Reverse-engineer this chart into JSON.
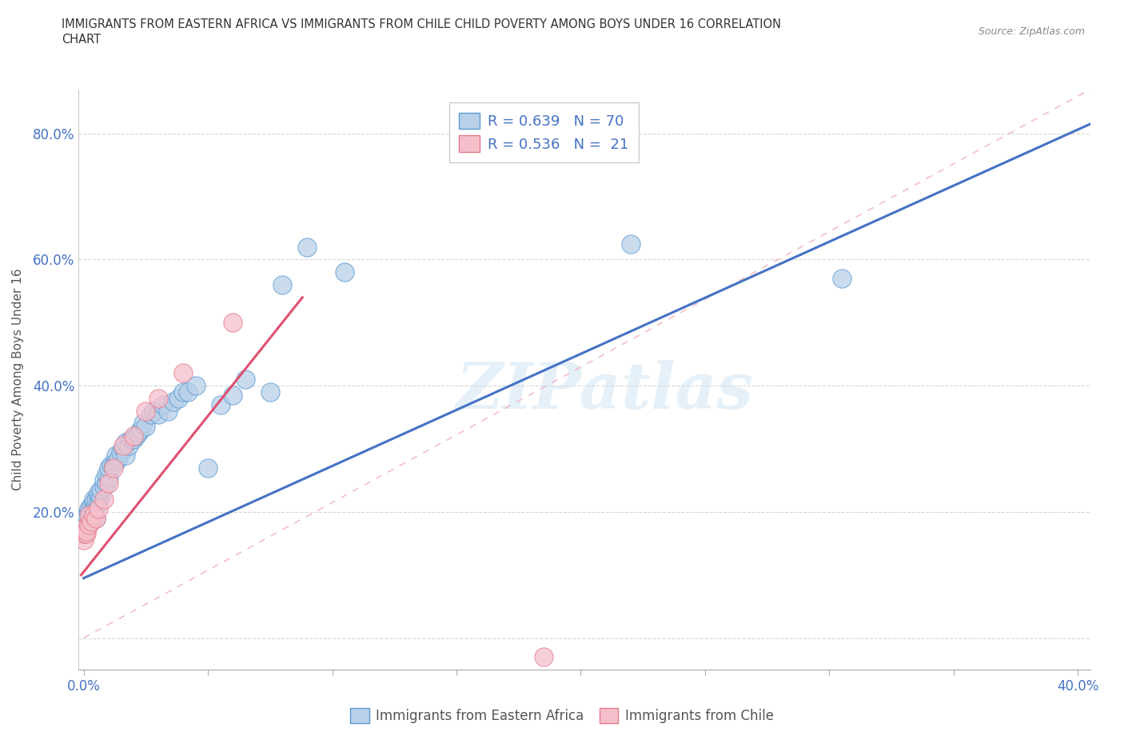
{
  "title_line1": "IMMIGRANTS FROM EASTERN AFRICA VS IMMIGRANTS FROM CHILE CHILD POVERTY AMONG BOYS UNDER 16 CORRELATION",
  "title_line2": "CHART",
  "source_text": "Source: ZipAtlas.com",
  "ylabel": "Child Poverty Among Boys Under 16",
  "xlim": [
    -0.002,
    0.405
  ],
  "ylim": [
    -0.05,
    0.87
  ],
  "xtick_positions": [
    0.0,
    0.05,
    0.1,
    0.15,
    0.2,
    0.25,
    0.3,
    0.35,
    0.4
  ],
  "xticklabels": [
    "0.0%",
    "",
    "",
    "",
    "",
    "",
    "",
    "",
    "40.0%"
  ],
  "ytick_positions": [
    0.0,
    0.2,
    0.4,
    0.6,
    0.8
  ],
  "yticklabels": [
    "",
    "20.0%",
    "40.0%",
    "60.0%",
    "80.0%"
  ],
  "color_blue_fill": "#b8d0e8",
  "color_blue_edge": "#5b9bd5",
  "color_pink_fill": "#f5c0cc",
  "color_pink_edge": "#e87a8a",
  "line_blue": "#4472c4",
  "line_pink": "#e05070",
  "line_diag_color": "#f0b0bb",
  "R_blue": 0.639,
  "N_blue": 70,
  "R_pink": 0.536,
  "N_pink": 21,
  "watermark": "ZIPatlas",
  "legend_label_blue": "Immigrants from Eastern Africa",
  "legend_label_pink": "Immigrants from Chile",
  "blue_line_x": [
    0.0,
    0.405
  ],
  "blue_line_y": [
    0.095,
    0.815
  ],
  "pink_line_x": [
    -0.001,
    0.088
  ],
  "pink_line_y": [
    0.1,
    0.54
  ],
  "diag_line_x": [
    0.0,
    0.405
  ],
  "diag_line_y": [
    0.0,
    0.87
  ],
  "blue_x": [
    0.0,
    0.0,
    0.0,
    0.0,
    0.001,
    0.001,
    0.001,
    0.001,
    0.001,
    0.002,
    0.002,
    0.002,
    0.002,
    0.003,
    0.003,
    0.003,
    0.004,
    0.004,
    0.004,
    0.005,
    0.005,
    0.005,
    0.006,
    0.006,
    0.006,
    0.007,
    0.007,
    0.008,
    0.008,
    0.009,
    0.009,
    0.01,
    0.01,
    0.011,
    0.012,
    0.013,
    0.013,
    0.014,
    0.015,
    0.016,
    0.017,
    0.017,
    0.018,
    0.019,
    0.02,
    0.021,
    0.022,
    0.023,
    0.024,
    0.025,
    0.027,
    0.028,
    0.03,
    0.032,
    0.034,
    0.036,
    0.038,
    0.04,
    0.042,
    0.045,
    0.05,
    0.055,
    0.06,
    0.065,
    0.075,
    0.08,
    0.09,
    0.105,
    0.22,
    0.305
  ],
  "blue_y": [
    0.165,
    0.175,
    0.18,
    0.19,
    0.175,
    0.18,
    0.185,
    0.19,
    0.195,
    0.185,
    0.195,
    0.2,
    0.205,
    0.195,
    0.2,
    0.21,
    0.205,
    0.215,
    0.22,
    0.19,
    0.21,
    0.22,
    0.215,
    0.225,
    0.23,
    0.225,
    0.235,
    0.24,
    0.25,
    0.245,
    0.26,
    0.255,
    0.27,
    0.275,
    0.275,
    0.28,
    0.29,
    0.285,
    0.295,
    0.3,
    0.29,
    0.31,
    0.305,
    0.315,
    0.315,
    0.32,
    0.325,
    0.33,
    0.34,
    0.335,
    0.355,
    0.36,
    0.355,
    0.37,
    0.36,
    0.375,
    0.38,
    0.39,
    0.39,
    0.4,
    0.27,
    0.37,
    0.385,
    0.41,
    0.39,
    0.56,
    0.62,
    0.58,
    0.625,
    0.57
  ],
  "pink_x": [
    0.0,
    0.0,
    0.0,
    0.001,
    0.001,
    0.002,
    0.002,
    0.003,
    0.004,
    0.005,
    0.006,
    0.008,
    0.01,
    0.012,
    0.016,
    0.02,
    0.025,
    0.03,
    0.04,
    0.06,
    0.185
  ],
  "pink_y": [
    0.155,
    0.165,
    0.175,
    0.165,
    0.17,
    0.18,
    0.195,
    0.185,
    0.195,
    0.19,
    0.205,
    0.22,
    0.245,
    0.27,
    0.305,
    0.32,
    0.36,
    0.38,
    0.42,
    0.5,
    -0.03
  ]
}
